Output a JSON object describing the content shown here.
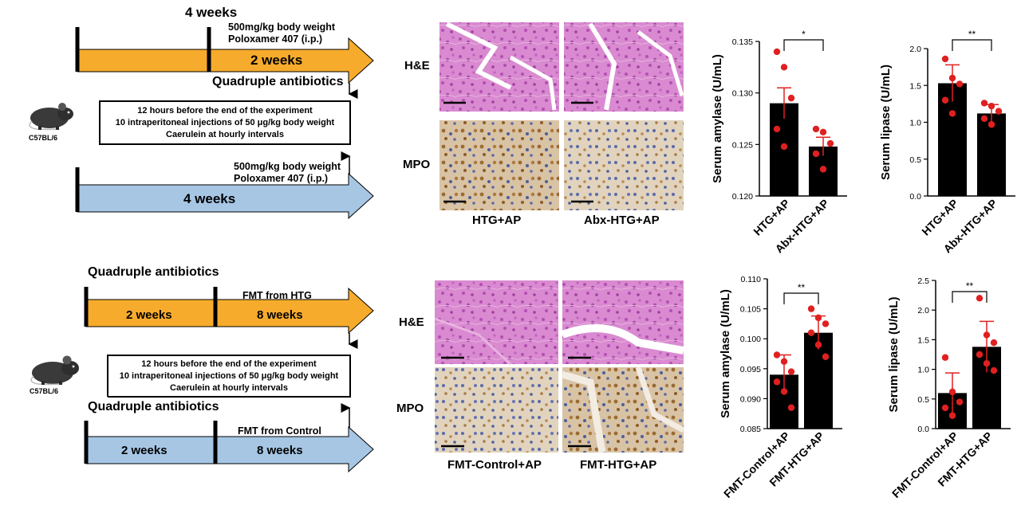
{
  "colors": {
    "orange": "#f7ab2c",
    "blue": "#a6c6e4",
    "he_tissue": "#d98ad0",
    "he_cell": "#b44fb2",
    "mpo_tissue": "#d9c3a5",
    "mpo_brown": "#9a6a33",
    "mpo_blue": "#4a5f9e",
    "bar": "#000000",
    "point": "#e02020",
    "error": "#e02020"
  },
  "icons": {
    "mouse": "mouse-icon"
  },
  "top_schematic": {
    "label_4weeks_top": "4 weeks",
    "dose_line1": "500mg/kg body weight",
    "dose_line2": "Poloxamer 407 (i.p.)",
    "orange_bar_label": "2 weeks",
    "antibiotics": "Quadruple antibiotics",
    "mouse_label": "C57BL/6",
    "box_line1": "12 hours before the end of the experiment",
    "box_line2": "10 intraperitoneal injections of 50 μg/kg body weight",
    "box_line3": "Caerulein at hourly intervals",
    "dose2_line1": "500mg/kg body weight",
    "dose2_line2": "Poloxamer 407 (i.p.)",
    "blue_bar_label": "4 weeks"
  },
  "bottom_schematic": {
    "antibiotics_top": "Quadruple antibiotics",
    "fmt_htg": "FMT from HTG",
    "orange_left": "2 weeks",
    "orange_right": "8 weeks",
    "mouse_label": "C57BL/6",
    "box_line1": "12 hours before the end of the experiment",
    "box_line2": "10 intraperitoneal injections of 50 μg/kg body weight",
    "box_line3": "Caerulein at hourly intervals",
    "antibiotics_bottom": "Quadruple antibiotics",
    "fmt_control": "FMT from Control",
    "blue_left": "2 weeks",
    "blue_right": "8 weeks"
  },
  "histology_top": {
    "row1": "H&E",
    "row2": "MPO",
    "col1": "HTG+AP",
    "col2": "Abx-HTG+AP"
  },
  "histology_bottom": {
    "row1": "H&E",
    "row2": "MPO",
    "col1": "FMT-Control+AP",
    "col2": "FMT-HTG+AP"
  },
  "chart_data": [
    {
      "type": "bar",
      "ylabel": "Serum amylase (U/mL)",
      "categories": [
        "HTG+AP",
        "Abx-HTG+AP"
      ],
      "values": [
        0.129,
        0.1248
      ],
      "errors": [
        0.0015,
        0.0009
      ],
      "points": [
        [
          0.134,
          0.1325,
          0.1295,
          0.1265,
          0.1248
        ],
        [
          0.1265,
          0.1262,
          0.1251,
          0.1241,
          0.1226
        ]
      ],
      "ylim": [
        0.12,
        0.135
      ],
      "yticks": [
        "0.120",
        "0.125",
        "0.130",
        "0.135"
      ],
      "ytick_values": [
        0.12,
        0.125,
        0.13,
        0.135
      ],
      "significance": "*"
    },
    {
      "type": "bar",
      "ylabel": "Serum lipase (U/mL)",
      "categories": [
        "HTG+AP",
        "Abx-HTG+AP"
      ],
      "values": [
        1.53,
        1.12
      ],
      "errors": [
        0.25,
        0.12
      ],
      "points": [
        [
          1.86,
          1.6,
          1.52,
          1.3,
          1.12
        ],
        [
          1.26,
          1.22,
          1.15,
          1.05,
          0.97
        ]
      ],
      "ylim": [
        0,
        2.0
      ],
      "yticks": [
        "0.0",
        "0.5",
        "1.0",
        "1.5",
        "2.0"
      ],
      "ytick_values": [
        0,
        0.5,
        1.0,
        1.5,
        2.0
      ],
      "significance": "**"
    },
    {
      "type": "bar",
      "ylabel": "Serum amylase (U/mL)",
      "categories": [
        "FMT-Control+AP",
        "FMT-HTG+AP"
      ],
      "values": [
        0.094,
        0.101
      ],
      "errors": [
        0.0033,
        0.0028
      ],
      "points": [
        [
          0.0973,
          0.0962,
          0.0945,
          0.0928,
          0.0912,
          0.0885
        ],
        [
          0.105,
          0.1035,
          0.1025,
          0.101,
          0.099,
          0.097
        ]
      ],
      "ylim": [
        0.085,
        0.11
      ],
      "yticks": [
        "0.085",
        "0.090",
        "0.095",
        "0.100",
        "0.105",
        "0.110"
      ],
      "ytick_values": [
        0.085,
        0.09,
        0.095,
        0.1,
        0.105,
        0.11
      ],
      "significance": "**"
    },
    {
      "type": "bar",
      "ylabel": "Serum lipase (U/mL)",
      "categories": [
        "FMT-Control+AP",
        "FMT-HTG+AP"
      ],
      "values": [
        0.6,
        1.38
      ],
      "errors": [
        0.34,
        0.43
      ],
      "points": [
        [
          1.2,
          0.62,
          0.45,
          0.35,
          0.22
        ],
        [
          2.2,
          1.58,
          1.45,
          1.25,
          1.1,
          0.98
        ]
      ],
      "ylim": [
        0,
        2.5
      ],
      "yticks": [
        "0.0",
        "0.5",
        "1.0",
        "1.5",
        "2.0",
        "2.5"
      ],
      "ytick_values": [
        0,
        0.5,
        1.0,
        1.5,
        2.0,
        2.5
      ],
      "significance": "**"
    }
  ]
}
